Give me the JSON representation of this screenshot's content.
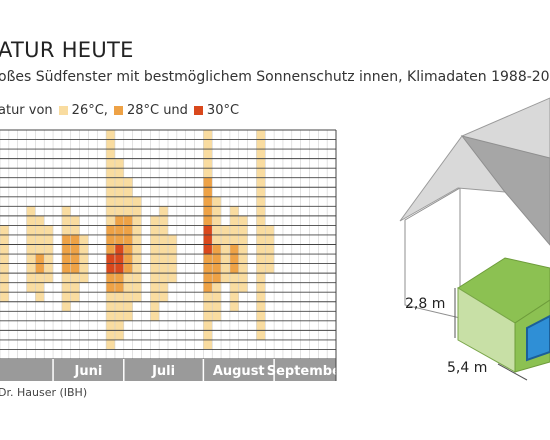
{
  "title": "ATUR HEUTE",
  "subtitle": "oßes Südfenster mit bestmöglichem Sonnenschutz innen, Klimadaten 1988-200",
  "legend": {
    "prefix": "atur von",
    "items": [
      {
        "label": "26°C,",
        "color": "#f9dca0"
      },
      {
        "label": "28°C und",
        "color": "#eea246"
      },
      {
        "label": "30°C",
        "color": "#d9481c"
      }
    ]
  },
  "source": "Dr. Hauser (IBH)",
  "house": {
    "height_label": "2,8 m",
    "depth_label": "5,4 m"
  },
  "colors": {
    "none": "#ffffff",
    "level1": "#f9dca0",
    "level2": "#eea246",
    "level3": "#d9481c",
    "month_band": "#9a9a9a"
  },
  "chart_data": {
    "type": "heatmap",
    "x_label_bands": [
      "Juni",
      "Juli",
      "August",
      "September"
    ],
    "x_unit": "day",
    "y_unit": "hour",
    "value_scale": "0 = unter 26°C, 1 = ab 26°C, 2 = ab 28°C, 3 = ab 30°C",
    "days": 38,
    "hours": 24,
    "cells": [
      {
        "day": 1,
        "hours": [
          11,
          18
        ],
        "levels": [
          1,
          1,
          1,
          1,
          1,
          1,
          1,
          1
        ]
      },
      {
        "day": 4,
        "hours": [
          9,
          17
        ],
        "levels": [
          1,
          1,
          1,
          1,
          1,
          1,
          1,
          1,
          1
        ]
      },
      {
        "day": 5,
        "hours": [
          10,
          18
        ],
        "levels": [
          1,
          1,
          1,
          1,
          2,
          2,
          1,
          1,
          1
        ]
      },
      {
        "day": 6,
        "hours": [
          11,
          16
        ],
        "levels": [
          1,
          1,
          1,
          1,
          1,
          1
        ]
      },
      {
        "day": 8,
        "hours": [
          9,
          19
        ],
        "levels": [
          1,
          1,
          1,
          2,
          2,
          2,
          2,
          1,
          1,
          1,
          1
        ]
      },
      {
        "day": 9,
        "hours": [
          10,
          18
        ],
        "levels": [
          1,
          1,
          2,
          2,
          2,
          2,
          1,
          1,
          1
        ]
      },
      {
        "day": 10,
        "hours": [
          12,
          16
        ],
        "levels": [
          1,
          1,
          1,
          1,
          1
        ]
      },
      {
        "day": 13,
        "hours": [
          1,
          23
        ],
        "levels": [
          1,
          1,
          1,
          1,
          1,
          1,
          1,
          1,
          1,
          1,
          2,
          2,
          2,
          3,
          3,
          2,
          2,
          1,
          1,
          1,
          1,
          1,
          1
        ]
      },
      {
        "day": 14,
        "hours": [
          4,
          22
        ],
        "levels": [
          1,
          1,
          1,
          1,
          1,
          1,
          2,
          2,
          2,
          3,
          3,
          3,
          2,
          2,
          1,
          1,
          1,
          1,
          1
        ]
      },
      {
        "day": 15,
        "hours": [
          6,
          20
        ],
        "levels": [
          1,
          1,
          1,
          1,
          2,
          2,
          2,
          2,
          2,
          2,
          1,
          1,
          1,
          1,
          1
        ]
      },
      {
        "day": 16,
        "hours": [
          8,
          18
        ],
        "levels": [
          1,
          1,
          1,
          1,
          1,
          1,
          1,
          1,
          1,
          1,
          1
        ]
      },
      {
        "day": 18,
        "hours": [
          10,
          20
        ],
        "levels": [
          1,
          1,
          1,
          1,
          1,
          1,
          1,
          1,
          1,
          1,
          1
        ]
      },
      {
        "day": 19,
        "hours": [
          9,
          18
        ],
        "levels": [
          1,
          1,
          1,
          1,
          1,
          1,
          1,
          1,
          1,
          1
        ]
      },
      {
        "day": 20,
        "hours": [
          12,
          16
        ],
        "levels": [
          1,
          1,
          1,
          1,
          1
        ]
      },
      {
        "day": 24,
        "hours": [
          1,
          23
        ],
        "levels": [
          1,
          1,
          1,
          1,
          1,
          2,
          2,
          2,
          2,
          2,
          3,
          3,
          3,
          2,
          2,
          2,
          2,
          1,
          1,
          1,
          1,
          1,
          1
        ]
      },
      {
        "day": 25,
        "hours": [
          8,
          20
        ],
        "levels": [
          1,
          1,
          1,
          1,
          1,
          2,
          2,
          2,
          2,
          1,
          1,
          1,
          1
        ]
      },
      {
        "day": 26,
        "hours": [
          11,
          16
        ],
        "levels": [
          1,
          1,
          1,
          1,
          1,
          1
        ]
      },
      {
        "day": 27,
        "hours": [
          9,
          19
        ],
        "levels": [
          1,
          1,
          1,
          1,
          2,
          2,
          2,
          1,
          1,
          1,
          1
        ]
      },
      {
        "day": 28,
        "hours": [
          10,
          17
        ],
        "levels": [
          1,
          1,
          1,
          1,
          1,
          1,
          1,
          1
        ]
      },
      {
        "day": 30,
        "hours": [
          1,
          22
        ],
        "levels": [
          1,
          1,
          1,
          1,
          1,
          1,
          1,
          1,
          1,
          1,
          1,
          1,
          1,
          1,
          1,
          1,
          1,
          1,
          1,
          1,
          1,
          1
        ]
      },
      {
        "day": 31,
        "hours": [
          11,
          15
        ],
        "levels": [
          1,
          1,
          1,
          1,
          1
        ]
      }
    ]
  }
}
